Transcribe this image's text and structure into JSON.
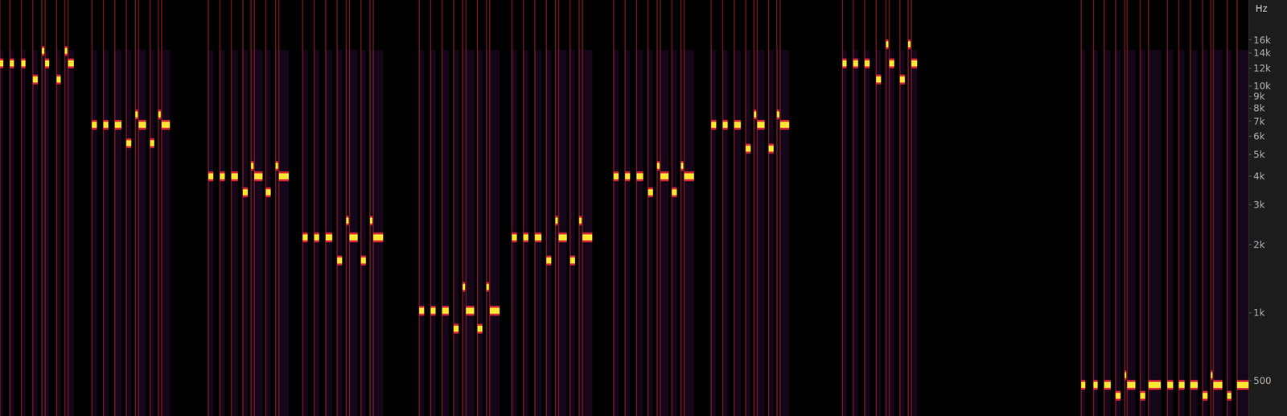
{
  "chart_data": {
    "type": "spectrogram",
    "ylabel": "Hz",
    "color": "#ffe833",
    "log": "y",
    "grid": false,
    "tick_labels": "y",
    "xlim": [
      0,
      1522
    ],
    "ylim": [
      350,
      24000
    ],
    "yticks": [
      500,
      {
        "value": 1000,
        "label": "1k"
      },
      {
        "value": 2000,
        "label": "2k"
      },
      {
        "value": 3000,
        "label": "3k"
      },
      {
        "value": 4000,
        "label": "4k"
      },
      {
        "value": 5000,
        "label": "5k"
      },
      {
        "value": 6000,
        "label": "6k"
      },
      {
        "value": 7000,
        "label": "7k"
      },
      {
        "value": 8000,
        "label": "8k"
      },
      {
        "value": 9000,
        "label": "9k"
      },
      {
        "value": 10000,
        "label": "10k"
      },
      {
        "value": 12000,
        "label": "12k"
      },
      {
        "value": 14000,
        "label": "14k"
      },
      {
        "value": 16000,
        "label": "16k"
      }
    ],
    "notes": {
      "start": [
        0,
        12,
        26,
        40,
        51,
        55,
        69,
        79,
        83,
        112,
        126,
        140,
        154,
        165,
        169,
        183,
        193,
        197,
        254,
        268,
        282,
        296,
        306,
        310,
        324,
        336,
        340,
        369,
        383,
        397,
        411,
        422,
        426,
        440,
        451,
        455,
        511,
        525,
        539,
        553,
        564,
        568,
        582,
        593,
        597,
        624,
        638,
        652,
        666,
        677,
        681,
        695,
        706,
        710,
        748,
        762,
        776,
        790,
        801,
        805,
        819,
        830,
        834,
        867,
        881,
        895,
        909,
        919,
        923,
        937,
        947,
        951,
        1027,
        1040,
        1054,
        1068,
        1080,
        1084,
        1097,
        1107,
        1111,
        1318,
        1333,
        1346,
        1360,
        1371,
        1374,
        1390,
        1400,
        1423,
        1437,
        1451,
        1466,
        1476,
        1479,
        1496,
        1508
      ],
      "end": [
        4,
        17,
        31,
        46,
        54,
        60,
        74,
        82,
        90,
        118,
        132,
        148,
        160,
        168,
        178,
        188,
        196,
        207,
        260,
        274,
        290,
        302,
        309,
        320,
        330,
        339,
        352,
        375,
        389,
        405,
        417,
        425,
        436,
        446,
        454,
        467,
        517,
        531,
        547,
        559,
        567,
        578,
        588,
        596,
        609,
        630,
        644,
        660,
        672,
        680,
        691,
        701,
        709,
        722,
        754,
        768,
        784,
        796,
        804,
        815,
        825,
        833,
        846,
        873,
        887,
        903,
        915,
        922,
        932,
        943,
        950,
        962,
        1032,
        1046,
        1060,
        1074,
        1083,
        1090,
        1103,
        1110,
        1118,
        1323,
        1338,
        1354,
        1366,
        1373,
        1384,
        1396,
        1415,
        1430,
        1444,
        1460,
        1472,
        1478,
        1490,
        1501,
        1522
      ],
      "freq": [
        12600,
        12600,
        12600,
        10700,
        14300,
        12600,
        10700,
        14300,
        12600,
        6750,
        6750,
        6750,
        5600,
        7500,
        6750,
        5600,
        7500,
        6750,
        4000,
        4000,
        4000,
        3400,
        4450,
        4000,
        3400,
        4450,
        4000,
        2150,
        2150,
        2150,
        1700,
        2550,
        2150,
        1700,
        2550,
        2150,
        1020,
        1020,
        1020,
        850,
        1300,
        1020,
        850,
        1300,
        1020,
        2150,
        2150,
        2150,
        1700,
        2550,
        2150,
        1700,
        2550,
        2150,
        4000,
        4000,
        4000,
        3400,
        4450,
        4000,
        3400,
        4450,
        4000,
        6750,
        6750,
        6750,
        5300,
        7500,
        6750,
        5300,
        7500,
        6750,
        12600,
        12600,
        12600,
        10700,
        15300,
        12600,
        10700,
        15300,
        12600,
        480,
        480,
        480,
        430,
        530,
        480,
        430,
        480,
        480,
        480,
        480,
        430,
        530,
        480,
        430,
        480
      ]
    }
  }
}
